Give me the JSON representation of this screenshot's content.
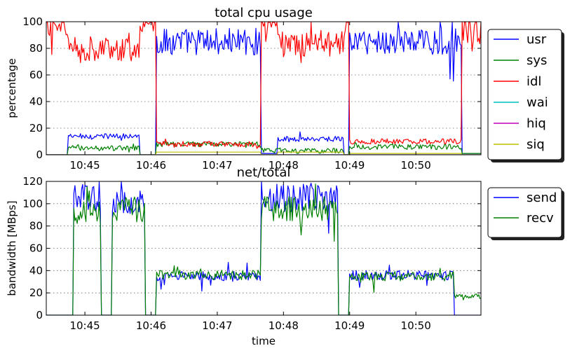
{
  "chart_data": [
    {
      "type": "line",
      "title": "total cpu usage",
      "xlabel": "",
      "ylabel": "percentage",
      "xlim": [
        "10:44:25",
        "10:50:59"
      ],
      "ylim": [
        0,
        100
      ],
      "x_ticks": [
        "10:45",
        "10:46",
        "10:47",
        "10:48",
        "10:49",
        "10:50"
      ],
      "y_ticks": [
        0,
        20,
        40,
        60,
        80,
        100
      ],
      "grid": "horizontal dotted",
      "legend_position": "right",
      "segments": [
        {
          "start": "10:44:25",
          "end": "10:44:45",
          "usr": 0,
          "sys": 0,
          "idl": 99,
          "wai": 0,
          "hiq": 0,
          "siq": 0
        },
        {
          "start": "10:44:45",
          "end": "10:45:50",
          "usr": 14,
          "sys": 5,
          "idl": 80,
          "wai": 0,
          "hiq": 0,
          "siq": 0
        },
        {
          "start": "10:45:50",
          "end": "10:46:05",
          "usr": 0,
          "sys": 0,
          "idl": 99,
          "wai": 0,
          "hiq": 0,
          "siq": 0
        },
        {
          "start": "10:46:05",
          "end": "10:47:40",
          "usr": 85,
          "sys": 8,
          "idl": 8,
          "wai": 0,
          "hiq": 0,
          "siq": 2
        },
        {
          "start": "10:47:40",
          "end": "10:47:55",
          "usr": 1,
          "sys": 3,
          "idl": 96,
          "wai": 0,
          "hiq": 0,
          "siq": 0
        },
        {
          "start": "10:47:55",
          "end": "10:48:55",
          "usr": 12,
          "sys": 3,
          "idl": 84,
          "wai": 0,
          "hiq": 0,
          "siq": 2
        },
        {
          "start": "10:48:55",
          "end": "10:49:00",
          "usr": 0,
          "sys": 0,
          "idl": 99,
          "wai": 0,
          "hiq": 0,
          "siq": 0
        },
        {
          "start": "10:49:00",
          "end": "10:50:42",
          "usr": 85,
          "sys": 6,
          "idl": 10,
          "wai": 0,
          "hiq": 0,
          "siq": 1
        },
        {
          "start": "10:50:42",
          "end": "10:50:59",
          "usr": 1,
          "sys": 1,
          "idl": 94,
          "wai": 0,
          "hiq": 0,
          "siq": 0
        }
      ],
      "series": [
        {
          "name": "usr",
          "color": "#0000ff"
        },
        {
          "name": "sys",
          "color": "#008000"
        },
        {
          "name": "idl",
          "color": "#ff0000"
        },
        {
          "name": "wai",
          "color": "#00bfbf"
        },
        {
          "name": "hiq",
          "color": "#bf00bf"
        },
        {
          "name": "siq",
          "color": "#bfbf00"
        }
      ]
    },
    {
      "type": "line",
      "title": "net/total",
      "xlabel": "time",
      "ylabel": "bandwidth [MBps]",
      "xlim": [
        "10:44:25",
        "10:50:59"
      ],
      "ylim": [
        0,
        120
      ],
      "x_ticks": [
        "10:45",
        "10:46",
        "10:47",
        "10:48",
        "10:49",
        "10:50"
      ],
      "y_ticks": [
        0,
        20,
        40,
        60,
        80,
        100,
        120
      ],
      "grid": "horizontal dotted",
      "legend_position": "right",
      "segments": [
        {
          "start": "10:44:25",
          "end": "10:44:50",
          "send": 0,
          "recv": 0
        },
        {
          "start": "10:44:50",
          "end": "10:45:15",
          "send": 105,
          "recv": 92
        },
        {
          "start": "10:45:15",
          "end": "10:45:25",
          "send": 0,
          "recv": 0
        },
        {
          "start": "10:45:25",
          "end": "10:45:55",
          "send": 100,
          "recv": 95
        },
        {
          "start": "10:45:55",
          "end": "10:46:05",
          "send": 0,
          "recv": 0
        },
        {
          "start": "10:46:05",
          "end": "10:47:40",
          "send": 35,
          "recv": 36
        },
        {
          "start": "10:47:40",
          "end": "10:48:50",
          "send": 105,
          "recv": 95
        },
        {
          "start": "10:48:50",
          "end": "10:49:00",
          "send": 0,
          "recv": 0
        },
        {
          "start": "10:49:00",
          "end": "10:50:35",
          "send": 36,
          "recv": 35
        },
        {
          "start": "10:50:35",
          "end": "10:50:59",
          "send": 0,
          "recv": 17
        }
      ],
      "series": [
        {
          "name": "send",
          "color": "#0000ff"
        },
        {
          "name": "recv",
          "color": "#008000"
        }
      ]
    }
  ]
}
